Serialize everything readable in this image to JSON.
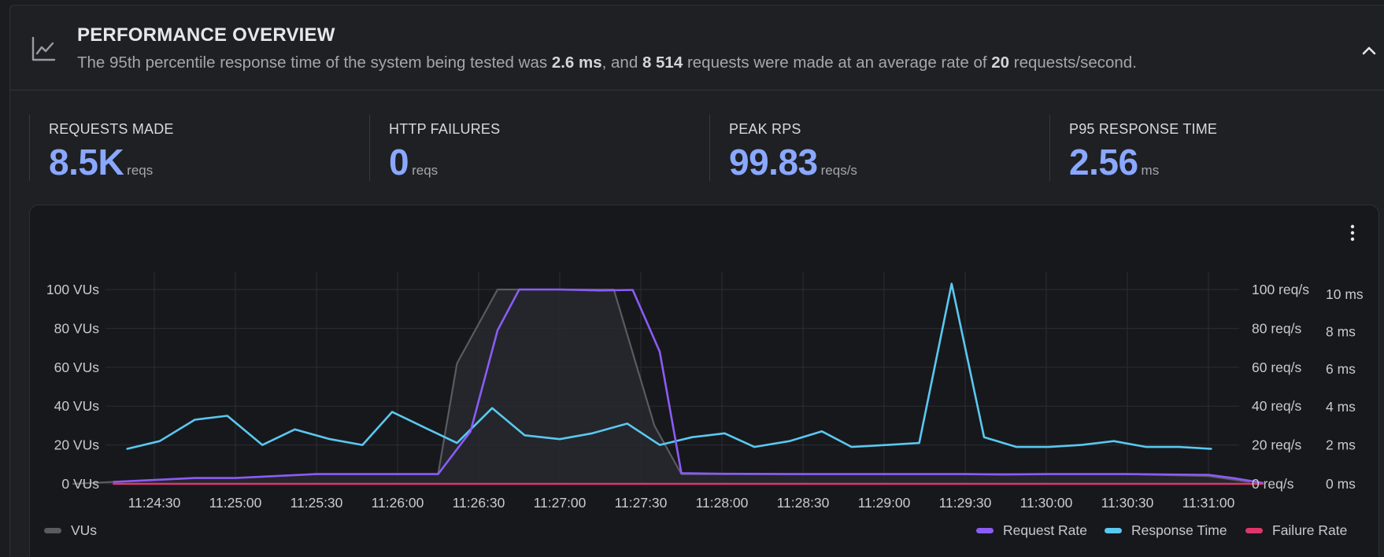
{
  "header": {
    "icon": "line-chart-icon",
    "title": "PERFORMANCE OVERVIEW",
    "subtitle_parts": {
      "p1": "The 95th percentile response time of the system being tested was ",
      "b1": "2.6 ms",
      "p2": ", and ",
      "b2": "8 514",
      "p3": " requests were made at an average rate of ",
      "b3": "20",
      "p4": " requests/second."
    },
    "collapse_icon": "chevron-up-icon"
  },
  "stats": [
    {
      "label": "REQUESTS MADE",
      "value": "8.5K",
      "unit": "reqs"
    },
    {
      "label": "HTTP FAILURES",
      "value": "0",
      "unit": "reqs"
    },
    {
      "label": "PEAK RPS",
      "value": "99.83",
      "unit": "reqs/s"
    },
    {
      "label": "P95 RESPONSE TIME",
      "value": "2.56",
      "unit": "ms"
    }
  ],
  "chart_menu_icon": "kebab-menu-icon",
  "colors": {
    "vus": "#5a5b60",
    "request_rate": "#8b5cf6",
    "response_time": "#5ac8f0",
    "failure_rate": "#e0356b",
    "accent": "#8aa8ff"
  },
  "chart_data": {
    "type": "line",
    "x": [
      "11:24:15",
      "11:24:30",
      "11:24:45",
      "11:25:00",
      "11:25:15",
      "11:25:30",
      "11:25:45",
      "11:26:00",
      "11:26:15",
      "11:26:30",
      "11:26:45",
      "11:27:00",
      "11:27:15",
      "11:27:30",
      "11:27:45",
      "11:28:00",
      "11:28:15",
      "11:28:30",
      "11:28:45",
      "11:29:00",
      "11:29:15",
      "11:29:30",
      "11:29:45",
      "11:30:00",
      "11:30:15",
      "11:30:30",
      "11:30:45",
      "11:31:00",
      "11:31:15"
    ],
    "x_tick_labels": [
      "11:24:30",
      "11:25:00",
      "11:25:30",
      "11:26:00",
      "11:26:30",
      "11:27:00",
      "11:27:30",
      "11:28:00",
      "11:28:30",
      "11:29:00",
      "11:29:30",
      "11:30:00",
      "11:30:30",
      "11:31:00"
    ],
    "y_left_ticks": [
      "0 VUs",
      "20 VUs",
      "40 VUs",
      "60 VUs",
      "80 VUs",
      "100 VUs"
    ],
    "y_right_ticks_rps": [
      "0 req/s",
      "20 req/s",
      "40 req/s",
      "60 req/s",
      "80 req/s",
      "100 req/s"
    ],
    "y_right_ticks_ms": [
      "0 ms",
      "2 ms",
      "4 ms",
      "6 ms",
      "8 ms",
      "10 ms"
    ],
    "ylim_vus": [
      0,
      100
    ],
    "ylim_rps": [
      0,
      100
    ],
    "ylim_ms": [
      0,
      10
    ],
    "grid": true,
    "series": [
      {
        "name": "VUs",
        "axis": "vus",
        "points": [
          [
            "11:24:00",
            0
          ],
          [
            "11:24:15",
            1
          ],
          [
            "11:24:30",
            2
          ],
          [
            "11:24:45",
            3
          ],
          [
            "11:25:00",
            3
          ],
          [
            "11:25:15",
            4
          ],
          [
            "11:25:30",
            5
          ],
          [
            "11:25:45",
            5
          ],
          [
            "11:26:00",
            5
          ],
          [
            "11:26:15",
            5
          ],
          [
            "11:26:22",
            62
          ],
          [
            "11:26:37",
            100
          ],
          [
            "11:27:00",
            100
          ],
          [
            "11:27:15",
            100
          ],
          [
            "11:27:20",
            100
          ],
          [
            "11:27:35",
            30
          ],
          [
            "11:27:45",
            5
          ],
          [
            "11:28:00",
            5
          ],
          [
            "11:28:30",
            5
          ],
          [
            "11:29:00",
            5
          ],
          [
            "11:29:30",
            5
          ],
          [
            "11:30:00",
            5
          ],
          [
            "11:30:30",
            5
          ],
          [
            "11:31:00",
            4
          ],
          [
            "11:31:15",
            1
          ]
        ]
      },
      {
        "name": "Request Rate",
        "axis": "rps",
        "points": [
          [
            "11:24:15",
            1
          ],
          [
            "11:24:30",
            2
          ],
          [
            "11:24:45",
            3
          ],
          [
            "11:25:00",
            3
          ],
          [
            "11:25:15",
            4
          ],
          [
            "11:25:30",
            5
          ],
          [
            "11:25:45",
            5
          ],
          [
            "11:26:00",
            5
          ],
          [
            "11:26:15",
            5
          ],
          [
            "11:26:27",
            27
          ],
          [
            "11:26:37",
            79
          ],
          [
            "11:26:45",
            100
          ],
          [
            "11:27:00",
            100
          ],
          [
            "11:27:15",
            99.5
          ],
          [
            "11:27:27",
            99.8
          ],
          [
            "11:27:37",
            68
          ],
          [
            "11:27:45",
            5.5
          ],
          [
            "11:28:00",
            5.2
          ],
          [
            "11:28:30",
            5
          ],
          [
            "11:29:00",
            5
          ],
          [
            "11:29:30",
            5
          ],
          [
            "11:29:45",
            4.8
          ],
          [
            "11:30:00",
            5
          ],
          [
            "11:30:30",
            5
          ],
          [
            "11:31:00",
            4.6
          ],
          [
            "11:31:10",
            2.8
          ],
          [
            "11:31:20",
            0.5
          ]
        ]
      },
      {
        "name": "Response Time",
        "axis": "ms",
        "points": [
          [
            "11:24:20",
            1.8
          ],
          [
            "11:24:32",
            2.2
          ],
          [
            "11:24:45",
            3.3
          ],
          [
            "11:24:57",
            3.5
          ],
          [
            "11:25:10",
            2.0
          ],
          [
            "11:25:22",
            2.8
          ],
          [
            "11:25:35",
            2.3
          ],
          [
            "11:25:47",
            2.0
          ],
          [
            "11:25:58",
            3.7
          ],
          [
            "11:26:10",
            2.9
          ],
          [
            "11:26:22",
            2.1
          ],
          [
            "11:26:35",
            3.9
          ],
          [
            "11:26:47",
            2.5
          ],
          [
            "11:27:00",
            2.3
          ],
          [
            "11:27:12",
            2.6
          ],
          [
            "11:27:25",
            3.1
          ],
          [
            "11:27:37",
            2.0
          ],
          [
            "11:27:49",
            2.4
          ],
          [
            "11:28:01",
            2.6
          ],
          [
            "11:28:12",
            1.9
          ],
          [
            "11:28:25",
            2.2
          ],
          [
            "11:28:37",
            2.7
          ],
          [
            "11:28:48",
            1.9
          ],
          [
            "11:29:01",
            2.0
          ],
          [
            "11:29:13",
            2.1
          ],
          [
            "11:29:25",
            10.3
          ],
          [
            "11:29:37",
            2.4
          ],
          [
            "11:29:49",
            1.9
          ],
          [
            "11:30:01",
            1.9
          ],
          [
            "11:30:13",
            2.0
          ],
          [
            "11:30:25",
            2.2
          ],
          [
            "11:30:37",
            1.9
          ],
          [
            "11:30:49",
            1.9
          ],
          [
            "11:31:01",
            1.8
          ]
        ]
      },
      {
        "name": "Failure Rate",
        "axis": "rps",
        "points": [
          [
            "11:24:15",
            0
          ],
          [
            "11:31:20",
            0
          ]
        ]
      }
    ],
    "legend": {
      "left": [
        "VUs"
      ],
      "right": [
        "Request Rate",
        "Response Time",
        "Failure Rate"
      ],
      "placement": "bottom"
    }
  }
}
